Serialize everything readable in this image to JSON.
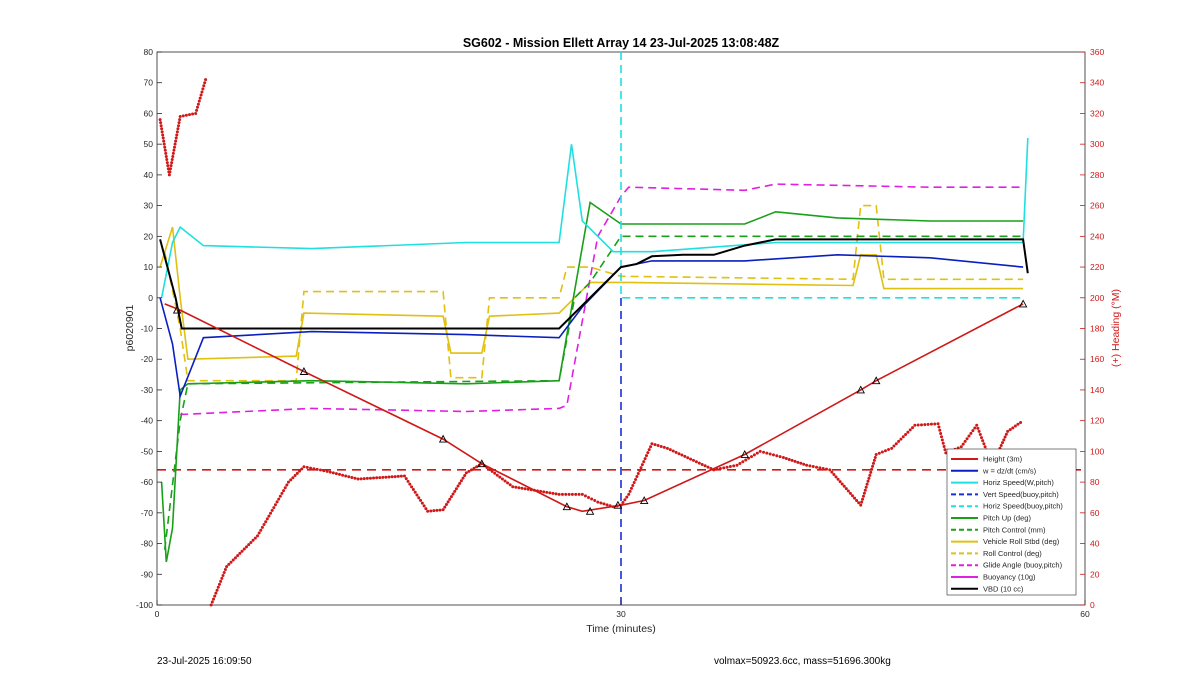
{
  "chart_data": {
    "type": "line",
    "title": "SG602 - Mission Ellett Array 14 23-Jul-2025 13:08:48Z",
    "xlabel": "Time (minutes)",
    "ylabel": "p6020901",
    "ylabel_right": "(+) Heading (°M)",
    "xlim": [
      0,
      60
    ],
    "ylim": [
      -100,
      80
    ],
    "ylim_right": [
      0,
      360
    ],
    "xticks": [
      "0",
      "30",
      "60"
    ],
    "yticks": [
      "80",
      "70",
      "60",
      "50",
      "40",
      "30",
      "20",
      "10",
      "0",
      "-10",
      "-20",
      "-30",
      "-40",
      "-50",
      "-60",
      "-70",
      "-80",
      "-90",
      "-100"
    ],
    "yticks_right": [
      "360",
      "340",
      "320",
      "300",
      "280",
      "260",
      "240",
      "220",
      "200",
      "180",
      "160",
      "140",
      "120",
      "100",
      "80",
      "60",
      "40",
      "20",
      "0"
    ],
    "grid": false,
    "legend_position": "bottom-right",
    "colors": {
      "height": "#d01818",
      "w": "#0b1fbf",
      "horiz_speed": "#1fe0e0",
      "vert_speed_buoy": "#1a2fd9",
      "pitch_up": "#18a018",
      "pitch_control": "#18a018",
      "roll": "#e0c010",
      "roll_control": "#e0c010",
      "glide_angle": "#e020e0",
      "buoyancy": "#e020e0",
      "vbd": "#000000",
      "heading": "#d01818"
    },
    "series": [
      {
        "name": "Height (3m)",
        "style": "solid",
        "x": [
          0.5,
          1.5,
          9.5,
          18.5,
          21,
          26.5,
          27.5,
          30.0,
          31.5,
          38.0,
          45.5,
          46.5,
          56.0
        ],
        "y": [
          -2,
          -4,
          -24,
          -46,
          -54,
          -68,
          -69.5,
          -67.5,
          -66,
          -51,
          -30,
          -27,
          -2
        ]
      },
      {
        "name": "w = dz/dt (cm/s)",
        "style": "solid",
        "x": [
          0.2,
          1.0,
          1.5,
          3,
          10,
          20,
          26,
          27.5,
          30,
          32,
          38,
          44,
          50,
          56
        ],
        "y": [
          0,
          -15,
          -32,
          -13,
          -11,
          -12,
          -13,
          -3,
          10,
          12,
          12,
          14,
          13,
          10
        ]
      },
      {
        "name": "Horiz Speed(W,pitch)",
        "style": "solid",
        "x": [
          0.3,
          1.0,
          1.5,
          3,
          10,
          20,
          26,
          26.8,
          27.5,
          29.5,
          32,
          40,
          50,
          56,
          56.3
        ],
        "y": [
          0,
          18,
          23,
          17,
          16,
          18,
          18,
          50,
          25,
          15,
          15,
          18,
          18,
          18,
          52
        ]
      },
      {
        "name": "Vert Speed(buoy,pitch)",
        "style": "dashed",
        "x": [
          30,
          30
        ],
        "y": [
          -100,
          0
        ]
      },
      {
        "name": "Horiz Speed(buoy,pitch)",
        "style": "dashed",
        "x": [
          30,
          30,
          56
        ],
        "y": [
          80,
          0,
          0
        ]
      },
      {
        "name": "Pitch Up (deg)",
        "style": "solid",
        "x": [
          0.3,
          0.6,
          1.0,
          1.5,
          2,
          10,
          20,
          26,
          26.5,
          28,
          30,
          38,
          40,
          44,
          50,
          56
        ],
        "y": [
          -60,
          -86,
          -75,
          -30,
          -28,
          -27,
          -28,
          -27,
          -12,
          31,
          24,
          24,
          28,
          26,
          25,
          25
        ]
      },
      {
        "name": "Pitch Control (mm)",
        "style": "dashed",
        "x": [
          0.5,
          1.5,
          2,
          26,
          27,
          28,
          30,
          56
        ],
        "y": [
          -82,
          -40,
          -28,
          -27,
          0,
          5,
          20,
          20
        ]
      },
      {
        "name": "Vehicle Roll Stbd (deg)",
        "style": "solid",
        "x": [
          0.2,
          1,
          1.5,
          2,
          9,
          9.5,
          18.5,
          19,
          21,
          21.5,
          26,
          27,
          28,
          30,
          45,
          45.5,
          46.5,
          47,
          56
        ],
        "y": [
          10,
          23,
          0,
          -20,
          -19,
          -5,
          -6,
          -18,
          -18,
          -6,
          -5,
          0,
          5,
          5,
          4,
          14,
          14,
          3,
          3
        ]
      },
      {
        "name": "Roll Control (deg)",
        "style": "dashed",
        "x": [
          0.5,
          1.5,
          2,
          9,
          9.5,
          18.5,
          19,
          21,
          21.5,
          26,
          26.5,
          28,
          30,
          45,
          45.5,
          46.5,
          47,
          56
        ],
        "y": [
          15,
          -10,
          -27,
          -27,
          2,
          2,
          -26,
          -26,
          0,
          0,
          10,
          10,
          7,
          6,
          30,
          30,
          6,
          6
        ]
      },
      {
        "name": "Glide Angle (buoy,pitch)",
        "style": "dashed",
        "x": [
          1.5,
          10,
          20,
          26,
          26.5,
          28.5,
          30,
          30.5,
          38,
          40,
          50,
          56
        ],
        "y": [
          -38,
          -36,
          -37,
          -36,
          -35,
          20,
          33,
          36,
          35,
          37,
          36,
          36
        ]
      },
      {
        "name": "Buoyancy (10g)",
        "style": "solid",
        "x": [],
        "y": []
      },
      {
        "name": "VBD (10 cc)",
        "style": "solid",
        "x": [
          0.2,
          1.2,
          1.6,
          26.0,
          30,
          31,
          32.0,
          34,
          36,
          38,
          40,
          50,
          56,
          56.3
        ],
        "y": [
          19,
          0,
          -10,
          -10,
          10,
          11,
          13.5,
          14,
          14,
          17,
          19,
          19,
          19,
          8
        ]
      }
    ],
    "heading_series": {
      "axis": "right",
      "style": "dotted",
      "x": [
        0.2,
        0.8,
        1.5,
        2.5,
        3.2,
        3.5,
        4.5,
        6.5,
        8.5,
        9.5,
        11,
        13,
        16,
        17.5,
        18.5,
        20,
        21,
        23,
        26,
        27.5,
        28.5,
        29.5,
        30,
        30.5,
        32,
        33,
        34.5,
        36,
        37.5,
        39,
        40.5,
        42,
        43.5,
        45.5,
        46.5,
        47.5,
        49,
        50.5,
        51,
        52,
        53,
        54,
        55,
        56
      ],
      "y": [
        316,
        280,
        318,
        320,
        344,
        0,
        25,
        45,
        80,
        90,
        87,
        82,
        84,
        61,
        62,
        86,
        92,
        77,
        72,
        72,
        67,
        64,
        65,
        72,
        105,
        102,
        95,
        88,
        91,
        100,
        96,
        91,
        88,
        65,
        98,
        102,
        117,
        118,
        99,
        103,
        117,
        91,
        113,
        120
      ]
    },
    "reference_lines": [
      {
        "axis": "left",
        "y": -56,
        "style": "dashed",
        "color": "#d01818"
      }
    ],
    "markers": [
      {
        "x": 1.3,
        "y": -4,
        "shape": "triangle"
      },
      {
        "x": 9.5,
        "y": -24,
        "shape": "triangle"
      },
      {
        "x": 18.5,
        "y": -46,
        "shape": "triangle"
      },
      {
        "x": 21,
        "y": -54,
        "shape": "triangle"
      },
      {
        "x": 26.5,
        "y": -68,
        "shape": "triangle"
      },
      {
        "x": 28.0,
        "y": -69.5,
        "shape": "triangle"
      },
      {
        "x": 29.8,
        "y": -67.5,
        "shape": "triangle"
      },
      {
        "x": 31.5,
        "y": -66,
        "shape": "triangle"
      },
      {
        "x": 38.0,
        "y": -51,
        "shape": "triangle"
      },
      {
        "x": 45.5,
        "y": -30,
        "shape": "triangle"
      },
      {
        "x": 46.5,
        "y": -27,
        "shape": "triangle"
      },
      {
        "x": 56.0,
        "y": -2,
        "shape": "triangle"
      }
    ]
  },
  "footer": {
    "left": "23-Jul-2025 16:09:50",
    "right": "volmax=50923.6cc, mass=51696.300kg"
  }
}
